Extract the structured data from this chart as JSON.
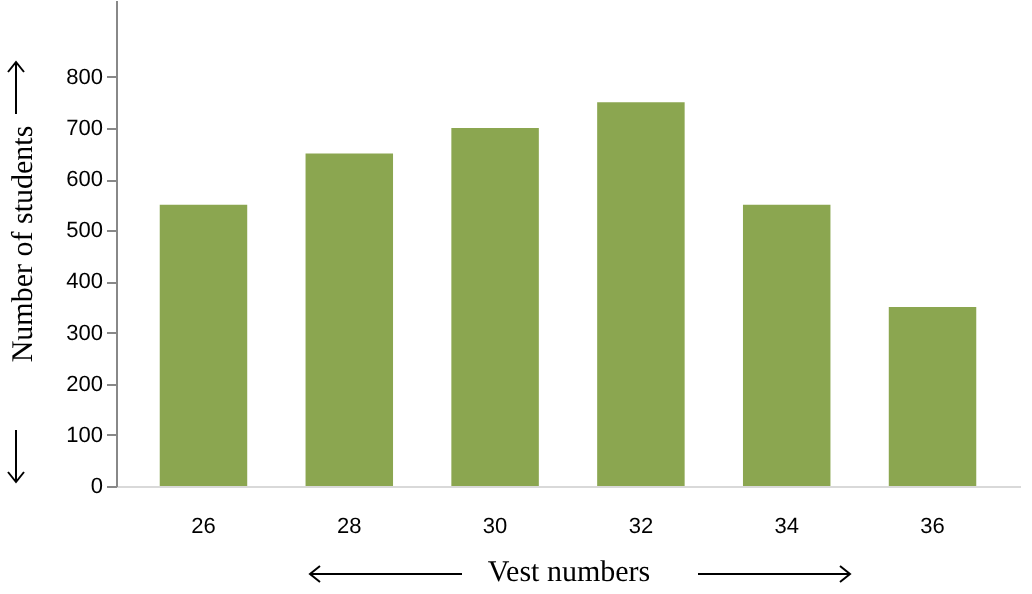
{
  "chart_data": {
    "type": "bar",
    "xlabel": "Vest numbers",
    "ylabel": "Number of students",
    "categories": [
      "26",
      "28",
      "30",
      "32",
      "34",
      "36"
    ],
    "values": [
      550,
      650,
      700,
      750,
      550,
      350
    ],
    "color": "#8ba650",
    "ylim": [
      0,
      950
    ],
    "yticks": [
      0,
      100,
      200,
      300,
      400,
      500,
      600,
      700,
      800
    ],
    "grid": false
  }
}
